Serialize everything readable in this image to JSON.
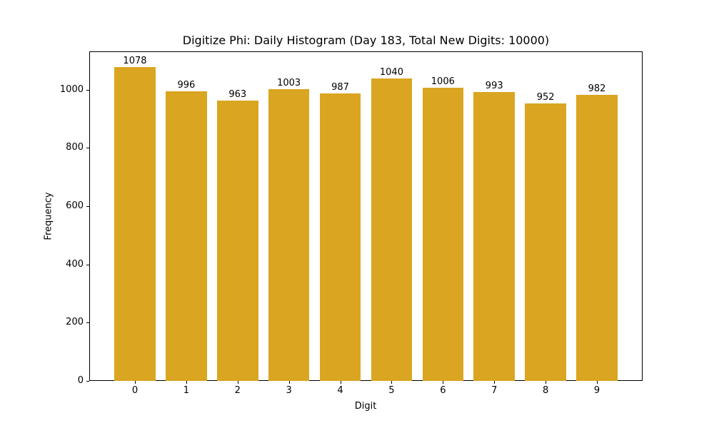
{
  "chart_data": {
    "type": "bar",
    "title": "Digitize Phi: Daily Histogram (Day 183, Total New Digits: 10000)",
    "xlabel": "Digit",
    "ylabel": "Frequency",
    "categories": [
      "0",
      "1",
      "2",
      "3",
      "4",
      "5",
      "6",
      "7",
      "8",
      "9"
    ],
    "values": [
      1078,
      996,
      963,
      1003,
      987,
      1040,
      1006,
      993,
      952,
      982
    ],
    "data_labels": [
      "1078",
      "996",
      "963",
      "1003",
      "987",
      "1040",
      "1006",
      "993",
      "952",
      "982"
    ],
    "bar_color": "#daa520",
    "bar_width": 0.8,
    "ylim": [
      0,
      1132
    ],
    "xlim": [
      -0.89,
      9.89
    ],
    "yticks": [
      0,
      200,
      400,
      600,
      800,
      1000
    ],
    "ytick_labels": [
      "0",
      "200",
      "400",
      "600",
      "800",
      "1000"
    ],
    "xticks": [
      0,
      1,
      2,
      3,
      4,
      5,
      6,
      7,
      8,
      9
    ],
    "xtick_labels": [
      "0",
      "1",
      "2",
      "3",
      "4",
      "5",
      "6",
      "7",
      "8",
      "9"
    ],
    "grid": false,
    "legend": null
  }
}
